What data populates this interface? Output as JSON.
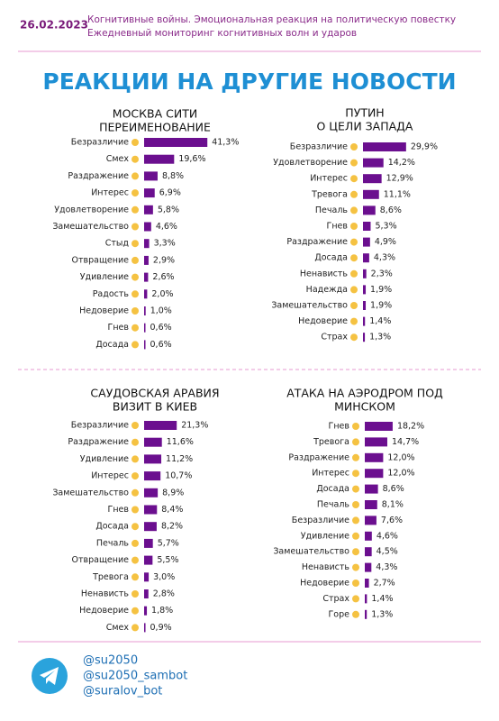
{
  "header": {
    "date": "26.02.2023",
    "lines": [
      "Когнитивные войны. Эмоциональная реакция на политическую повестку",
      "Ежедневный мониторинг когнитивных волн и ударов"
    ]
  },
  "title": "РЕАКЦИИ НА ДРУГИЕ НОВОСТИ",
  "chart_data": [
    {
      "type": "bar",
      "orientation": "horizontal",
      "color": "#6b0f8f",
      "title": [
        "МОСКВА СИТИ",
        "ПЕРЕИМЕНОВАНИЕ"
      ],
      "categories": [
        "Безразличие",
        "Смех",
        "Раздражение",
        "Интерес",
        "Удовлетворение",
        "Замешательство",
        "Стыд",
        "Отвращение",
        "Удивление",
        "Радость",
        "Недоверие",
        "Гнев",
        "Досада"
      ],
      "values": [
        41.3,
        19.6,
        8.8,
        6.9,
        5.8,
        4.6,
        3.3,
        2.9,
        2.6,
        2.0,
        1.0,
        0.6,
        0.6
      ],
      "value_labels": [
        "41,3%",
        "19,6%",
        "8,8%",
        "6,9%",
        "5,8%",
        "4,6%",
        "3,3%",
        "2,9%",
        "2,6%",
        "2,0%",
        "1,0%",
        "0,6%",
        "0,6%"
      ]
    },
    {
      "type": "bar",
      "orientation": "horizontal",
      "color": "#6b0f8f",
      "title": [
        "ПУТИН",
        "О ЦЕЛИ ЗАПАДА"
      ],
      "categories": [
        "Безразличие",
        "Удовлетворение",
        "Интерес",
        "Тревога",
        "Печаль",
        "Гнев",
        "Раздражение",
        "Досада",
        "Ненависть",
        "Надежда",
        "Замешательство",
        "Недоверие",
        "Страх"
      ],
      "values": [
        29.9,
        14.2,
        12.9,
        11.1,
        8.6,
        5.3,
        4.9,
        4.3,
        2.3,
        1.9,
        1.9,
        1.4,
        1.3
      ],
      "value_labels": [
        "29,9%",
        "14,2%",
        "12,9%",
        "11,1%",
        "8,6%",
        "5,3%",
        "4,9%",
        "4,3%",
        "2,3%",
        "1,9%",
        "1,9%",
        "1,4%",
        "1,3%"
      ]
    },
    {
      "type": "bar",
      "orientation": "horizontal",
      "color": "#6b0f8f",
      "title": [
        "САУДОВСКАЯ АРАВИЯ",
        "ВИЗИТ В КИЕВ"
      ],
      "categories": [
        "Безразличие",
        "Раздражение",
        "Удивление",
        "Интерес",
        "Замешательство",
        "Гнев",
        "Досада",
        "Печаль",
        "Отвращение",
        "Тревога",
        "Ненависть",
        "Недоверие",
        "Смех"
      ],
      "values": [
        21.3,
        11.6,
        11.2,
        10.7,
        8.9,
        8.4,
        8.2,
        5.7,
        5.5,
        3.0,
        2.8,
        1.8,
        0.9
      ],
      "value_labels": [
        "21,3%",
        "11,6%",
        "11,2%",
        "10,7%",
        "8,9%",
        "8,4%",
        "8,2%",
        "5,7%",
        "5,5%",
        "3,0%",
        "2,8%",
        "1,8%",
        "0,9%"
      ]
    },
    {
      "type": "bar",
      "orientation": "horizontal",
      "color": "#6b0f8f",
      "title": [
        "АТАКА НА АЭРОДРОМ ПОД",
        "МИНСКОМ"
      ],
      "categories": [
        "Гнев",
        "Тревога",
        "Раздражение",
        "Интерес",
        "Досада",
        "Печаль",
        "Безразличие",
        "Удивление",
        "Замешательство",
        "Ненависть",
        "Недоверие",
        "Страх",
        "Горе"
      ],
      "values": [
        18.2,
        14.7,
        12.0,
        12.0,
        8.6,
        8.1,
        7.6,
        4.6,
        4.5,
        4.3,
        2.7,
        1.4,
        1.3
      ],
      "value_labels": [
        "18,2%",
        "14,7%",
        "12,0%",
        "12,0%",
        "8,6%",
        "8,1%",
        "7,6%",
        "4,6%",
        "4,5%",
        "4,3%",
        "2,7%",
        "1,4%",
        "1,3%"
      ]
    }
  ],
  "footer": {
    "handles": [
      "@su2050",
      "@su2050_sambot",
      "@suralov_bot"
    ]
  }
}
